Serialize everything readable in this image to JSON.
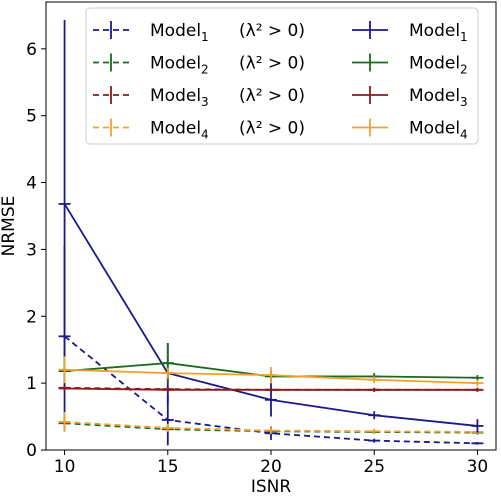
{
  "chart_data": {
    "type": "line",
    "title": "",
    "xlabel": "ISNR",
    "ylabel": "NRMSE",
    "xlim": [
      9.1,
      30.9
    ],
    "ylim": [
      0,
      6.7
    ],
    "xticks": [
      10,
      15,
      20,
      25,
      30
    ],
    "yticks": [
      0,
      1,
      2,
      3,
      4,
      5,
      6
    ],
    "grid": false,
    "legend_placement": "top",
    "legend_columns": 2,
    "x": [
      10,
      15,
      20,
      25,
      30
    ],
    "series": [
      {
        "name": "Model",
        "subscript": "1",
        "suffix": "(λ² > 0)",
        "color": "#1a1a8c",
        "style": "dashed",
        "values": [
          1.7,
          0.45,
          0.25,
          0.14,
          0.1
        ],
        "errors": [
          1.35,
          0.38,
          0.1,
          0.03,
          0.02
        ]
      },
      {
        "name": "Model",
        "subscript": "2",
        "suffix": "(λ² > 0)",
        "color": "#1a6b1a",
        "style": "dashed",
        "values": [
          0.4,
          0.31,
          0.28,
          0.27,
          0.26
        ],
        "errors": [
          0.1,
          0.05,
          0.04,
          0.03,
          0.03
        ]
      },
      {
        "name": "Model",
        "subscript": "3",
        "suffix": "(λ² > 0)",
        "color": "#8b1a1a",
        "style": "dashed",
        "values": [
          0.93,
          0.91,
          0.9,
          0.9,
          0.9
        ],
        "errors": [
          0.05,
          0.04,
          0.03,
          0.03,
          0.03
        ]
      },
      {
        "name": "Model",
        "subscript": "4",
        "suffix": "(λ² > 0)",
        "color": "#f5a02a",
        "style": "dashed",
        "values": [
          0.42,
          0.33,
          0.29,
          0.28,
          0.27
        ],
        "errors": [
          0.15,
          0.06,
          0.05,
          0.04,
          0.03
        ]
      },
      {
        "name": "Model",
        "subscript": "1",
        "suffix": "",
        "color": "#1a1a8c",
        "style": "solid",
        "values": [
          3.68,
          1.15,
          0.75,
          0.52,
          0.36
        ],
        "errors": [
          2.75,
          0.45,
          0.25,
          0.06,
          0.1
        ]
      },
      {
        "name": "Model",
        "subscript": "2",
        "suffix": "",
        "color": "#1a6b1a",
        "style": "solid",
        "values": [
          1.18,
          1.3,
          1.1,
          1.1,
          1.08
        ],
        "errors": [
          0.1,
          0.3,
          0.08,
          0.05,
          0.04
        ]
      },
      {
        "name": "Model",
        "subscript": "3",
        "suffix": "",
        "color": "#8b1a1a",
        "style": "solid",
        "values": [
          0.92,
          0.9,
          0.9,
          0.9,
          0.9
        ],
        "errors": [
          0.04,
          0.03,
          0.03,
          0.03,
          0.03
        ]
      },
      {
        "name": "Model",
        "subscript": "4",
        "suffix": "",
        "color": "#f5a02a",
        "style": "solid",
        "values": [
          1.2,
          1.15,
          1.12,
          1.05,
          1.0
        ],
        "errors": [
          0.2,
          0.08,
          0.12,
          0.05,
          0.05
        ]
      }
    ]
  }
}
